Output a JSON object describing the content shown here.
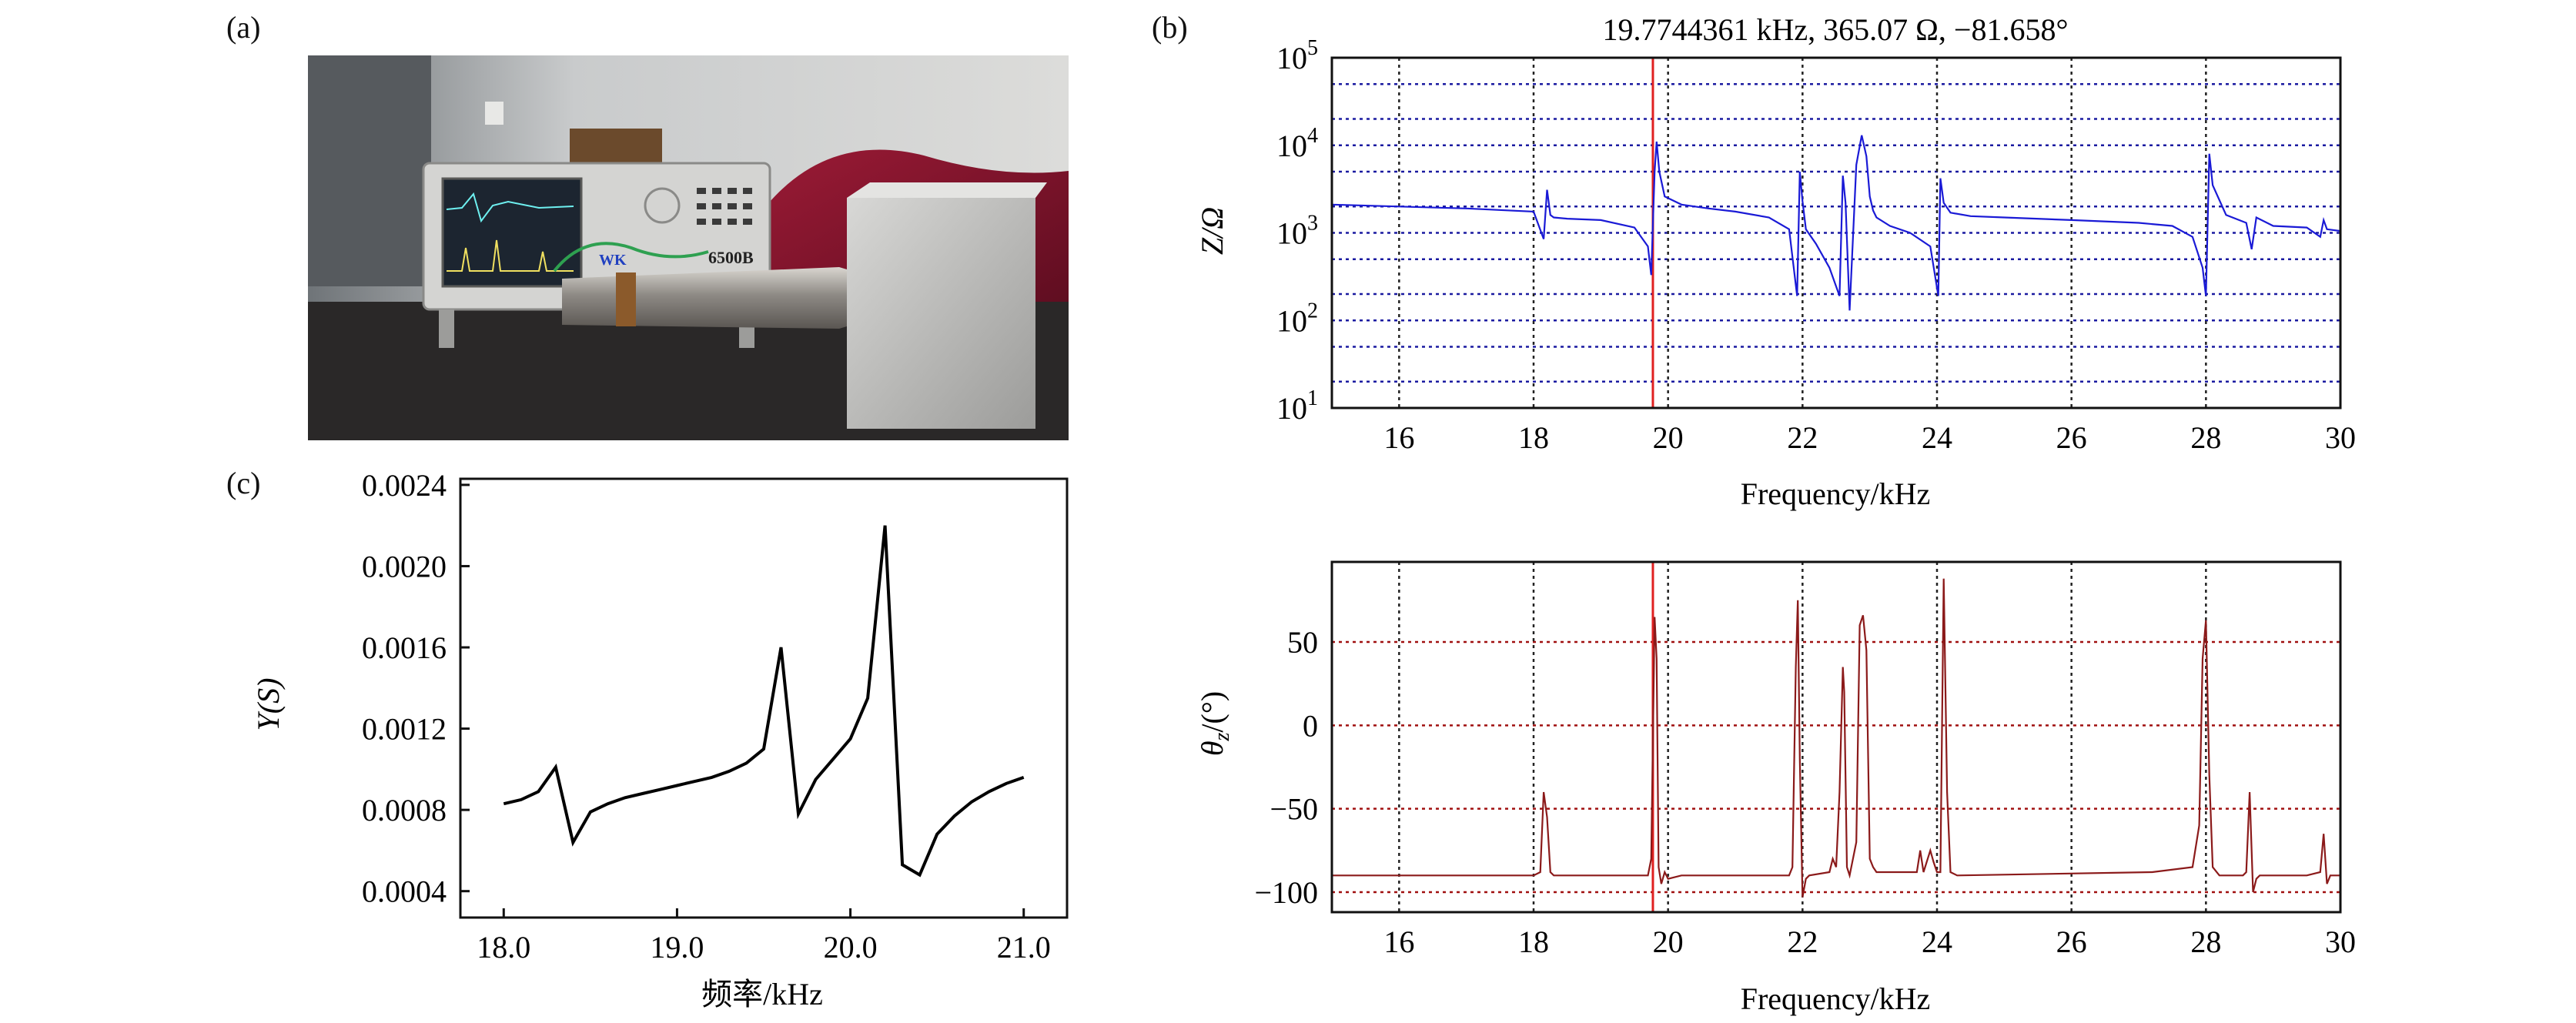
{
  "figure": {
    "panel_labels": [
      "(a)",
      "(b)",
      "(c)"
    ],
    "photo": {
      "description_text": "",
      "instrument_label": "6500B",
      "brand_label": "WK"
    }
  },
  "chart_data": [
    {
      "id": "impedance",
      "type": "line",
      "title": "19.7744361 kHz, 365.07 Ω, −81.658°",
      "xlabel": "Frequency/kHz",
      "ylabel": "Z/Ω",
      "yscale": "log",
      "xlim": [
        15,
        30
      ],
      "ylim": [
        10,
        100000
      ],
      "xticks": [
        16,
        18,
        20,
        22,
        24,
        26,
        28,
        30
      ],
      "xtick_labels": [
        "16",
        "18",
        "20",
        "22",
        "24",
        "26",
        "28",
        "30"
      ],
      "ytick_labels": [
        {
          "base": "10",
          "exp": "5"
        },
        {
          "base": "10",
          "exp": "4"
        },
        {
          "base": "10",
          "exp": "3"
        },
        {
          "base": "10",
          "exp": "2"
        },
        {
          "base": "10",
          "exp": "1"
        }
      ],
      "cursor_x": 19.7744,
      "line_color": "#1a1ad6",
      "grid_color": "#1a1aa0",
      "cursor_color": "#e02020",
      "series": [
        {
          "name": "Z",
          "x": [
            15.0,
            16.0,
            17.0,
            18.0,
            18.15,
            18.2,
            18.25,
            18.3,
            18.5,
            19.0,
            19.5,
            19.7,
            19.75,
            19.8,
            19.83,
            19.87,
            19.95,
            20.2,
            20.6,
            21.0,
            21.5,
            21.8,
            21.92,
            21.96,
            22.0,
            22.05,
            22.2,
            22.4,
            22.55,
            22.6,
            22.64,
            22.7,
            22.8,
            22.88,
            22.95,
            23.0,
            23.05,
            23.1,
            23.3,
            23.6,
            23.9,
            24.02,
            24.05,
            24.1,
            24.2,
            24.5,
            25.0,
            26.0,
            27.0,
            27.5,
            27.8,
            27.95,
            28.0,
            28.05,
            28.1,
            28.3,
            28.6,
            28.68,
            28.75,
            29.0,
            29.5,
            29.7,
            29.75,
            29.8,
            30.0
          ],
          "y": [
            2100,
            2000,
            1900,
            1750,
            850,
            3100,
            1600,
            1500,
            1450,
            1400,
            1150,
            700,
            330,
            5000,
            11000,
            5000,
            2600,
            2100,
            1900,
            1750,
            1500,
            1100,
            190,
            5000,
            2300,
            1100,
            750,
            400,
            190,
            4500,
            2200,
            130,
            6000,
            13000,
            7500,
            2600,
            1800,
            1500,
            1200,
            1000,
            700,
            190,
            4200,
            2200,
            1700,
            1550,
            1500,
            1400,
            1300,
            1200,
            900,
            400,
            190,
            8000,
            3500,
            1600,
            1300,
            650,
            1500,
            1200,
            1150,
            900,
            1400,
            1100,
            1050
          ]
        }
      ]
    },
    {
      "id": "phase",
      "type": "line",
      "title": "",
      "xlabel": "Frequency/kHz",
      "ylabel": "θz/(°)",
      "ylabel_main": "θ",
      "ylabel_sub": "z",
      "ylabel_rest": "/(°)",
      "xlim": [
        15,
        30
      ],
      "ylim": [
        -112,
        98
      ],
      "xticks": [
        16,
        18,
        20,
        22,
        24,
        26,
        28,
        30
      ],
      "xtick_labels": [
        "16",
        "18",
        "20",
        "22",
        "24",
        "26",
        "28",
        "30"
      ],
      "yticks": [
        50,
        0,
        -50,
        -100
      ],
      "ytick_labels": [
        "50",
        "0",
        "−50",
        "−100"
      ],
      "cursor_x": 19.7744,
      "line_color": "#8b1a1a",
      "grid_color": "#a01010",
      "cursor_color": "#e02020",
      "series": [
        {
          "name": "theta",
          "x": [
            15.0,
            18.0,
            18.1,
            18.15,
            18.2,
            18.25,
            18.3,
            19.7,
            19.75,
            19.8,
            19.83,
            19.86,
            19.9,
            19.95,
            20.0,
            20.2,
            21.8,
            21.85,
            21.9,
            21.93,
            21.96,
            22.0,
            22.05,
            22.1,
            22.4,
            22.45,
            22.5,
            22.55,
            22.6,
            22.62,
            22.66,
            22.7,
            22.8,
            22.85,
            22.9,
            22.95,
            23.0,
            23.05,
            23.1,
            23.5,
            23.7,
            23.75,
            23.8,
            23.9,
            23.95,
            24.0,
            24.05,
            24.1,
            24.15,
            24.2,
            24.3,
            27.2,
            27.8,
            27.9,
            27.95,
            28.0,
            28.05,
            28.1,
            28.2,
            28.55,
            28.6,
            28.65,
            28.7,
            28.75,
            28.8,
            29.5,
            29.7,
            29.75,
            29.8,
            29.85,
            30.0
          ],
          "y": [
            -90,
            -90,
            -88,
            -40,
            -55,
            -88,
            -90,
            -90,
            -80,
            65,
            40,
            -85,
            -95,
            -88,
            -92,
            -90,
            -90,
            -85,
            35,
            75,
            -20,
            -103,
            -92,
            -90,
            -88,
            -80,
            -85,
            -40,
            35,
            20,
            -85,
            -90,
            -70,
            60,
            66,
            45,
            -80,
            -85,
            -88,
            -88,
            -88,
            -75,
            -88,
            -75,
            -82,
            -88,
            -88,
            88,
            -40,
            -88,
            -90,
            -88,
            -85,
            -60,
            40,
            63,
            -30,
            -85,
            -90,
            -90,
            -88,
            -40,
            -100,
            -92,
            -90,
            -90,
            -88,
            -65,
            -95,
            -90,
            -90
          ]
        }
      ]
    },
    {
      "id": "admittance",
      "type": "line",
      "title": "",
      "xlabel": "频率/kHz",
      "ylabel": "Y(S)",
      "xlim": [
        17.75,
        21.25
      ],
      "ylim": [
        0.00027,
        0.00243
      ],
      "xticks": [
        18.0,
        19.0,
        20.0,
        21.0
      ],
      "xtick_labels": [
        "18.0",
        "19.0",
        "20.0",
        "21.0"
      ],
      "yticks": [
        0.0004,
        0.0008,
        0.0012,
        0.0016,
        0.002,
        0.0024
      ],
      "ytick_labels": [
        "0.0004",
        "0.0008",
        "0.0012",
        "0.0016",
        "0.0020",
        "0.0024"
      ],
      "line_color": "#000000",
      "series": [
        {
          "name": "Y",
          "x": [
            18.0,
            18.1,
            18.2,
            18.3,
            18.4,
            18.5,
            18.6,
            18.7,
            18.8,
            18.9,
            19.0,
            19.1,
            19.2,
            19.3,
            19.4,
            19.5,
            19.6,
            19.7,
            19.8,
            19.9,
            20.0,
            20.1,
            20.2,
            20.3,
            20.4,
            20.5,
            20.6,
            20.7,
            20.8,
            20.9,
            21.0
          ],
          "y": [
            0.00083,
            0.00085,
            0.00089,
            0.00101,
            0.00064,
            0.00079,
            0.00083,
            0.00086,
            0.00088,
            0.0009,
            0.00092,
            0.00094,
            0.00096,
            0.00099,
            0.00103,
            0.0011,
            0.0016,
            0.00078,
            0.00095,
            0.00105,
            0.00115,
            0.00135,
            0.0022,
            0.00053,
            0.00048,
            0.00068,
            0.00077,
            0.00084,
            0.00089,
            0.00093,
            0.00096
          ]
        }
      ]
    }
  ]
}
